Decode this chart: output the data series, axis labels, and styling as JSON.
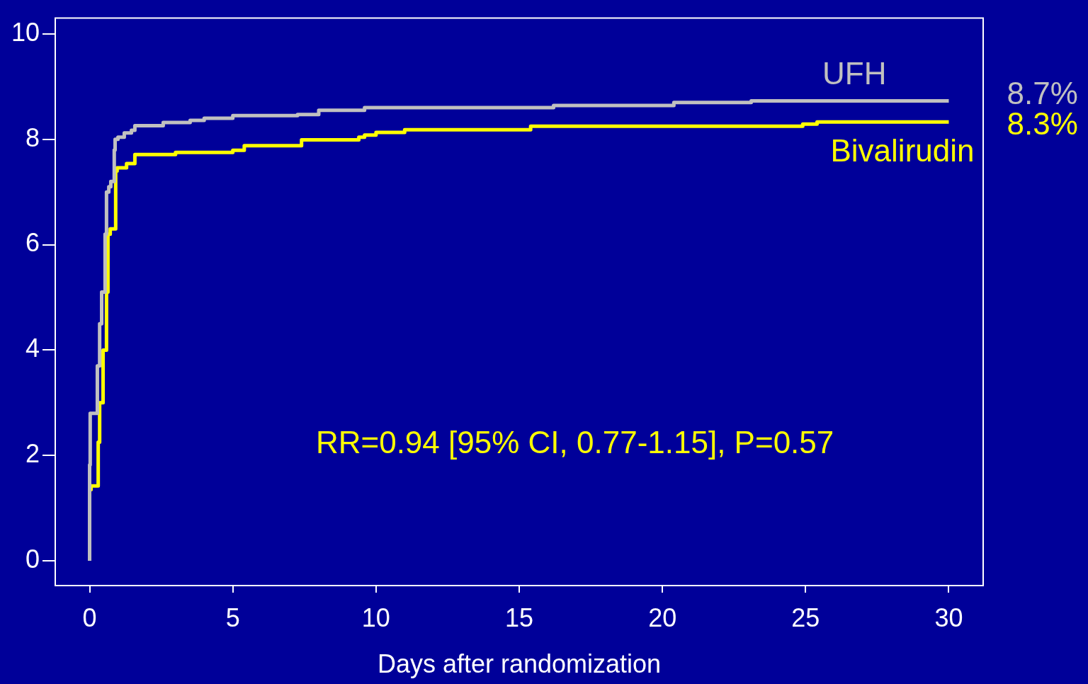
{
  "chart_data": {
    "type": "step",
    "xlabel": "Days after randomization",
    "xlim": [
      -1.2,
      31.2
    ],
    "xticks": [
      0,
      5,
      10,
      15,
      20,
      25,
      30
    ],
    "ylim": [
      -0.47,
      10.3
    ],
    "yticks": [
      0,
      2,
      4,
      6,
      8,
      10
    ],
    "legend": false,
    "marker": "none",
    "line_style": "solid",
    "series": [
      {
        "name": "UFH",
        "color": "#c0c0c0",
        "x": [
          0,
          0.02,
          0.27,
          0.35,
          0.42,
          0.54,
          0.59,
          0.67,
          0.74,
          0.86,
          0.89,
          0.99,
          1.21,
          1.46,
          1.58,
          2.57,
          3.51,
          4.0,
          5.0,
          7.26,
          8.0,
          9.6,
          16.2,
          20.4,
          23.1,
          24.6,
          30
        ],
        "values": [
          0,
          1.82,
          2.8,
          3.7,
          4.5,
          5.1,
          6.2,
          7.0,
          7.1,
          7.2,
          7.8,
          8.0,
          8.04,
          8.12,
          8.17,
          8.26,
          8.32,
          8.36,
          8.4,
          8.45,
          8.47,
          8.55,
          8.6,
          8.64,
          8.7,
          8.73,
          8.73
        ]
      },
      {
        "name": "Bivalirudin",
        "color": "#ffff00",
        "x": [
          0,
          0.05,
          0.3,
          0.35,
          0.47,
          0.59,
          0.64,
          0.72,
          0.91,
          0.96,
          1.29,
          1.58,
          3.0,
          5.0,
          5.4,
          7.4,
          9.4,
          9.6,
          10.0,
          11.0,
          15.4,
          24.9,
          25.4,
          27.6,
          30
        ],
        "values": [
          0,
          1.35,
          1.42,
          2.25,
          3.0,
          4.0,
          5.1,
          6.2,
          6.3,
          7.4,
          7.46,
          7.54,
          7.71,
          7.75,
          7.79,
          7.88,
          7.99,
          8.04,
          8.08,
          8.13,
          8.18,
          8.25,
          8.29,
          8.33,
          8.33
        ]
      }
    ],
    "annotations": [
      {
        "text": "8.7%",
        "x": 30,
        "y": 8.73
      },
      {
        "text": "8.3%",
        "x": 30,
        "y": 8.33
      },
      "RR=0.94 [95% CI, 0.77-1.15], P=0.57"
    ]
  }
}
